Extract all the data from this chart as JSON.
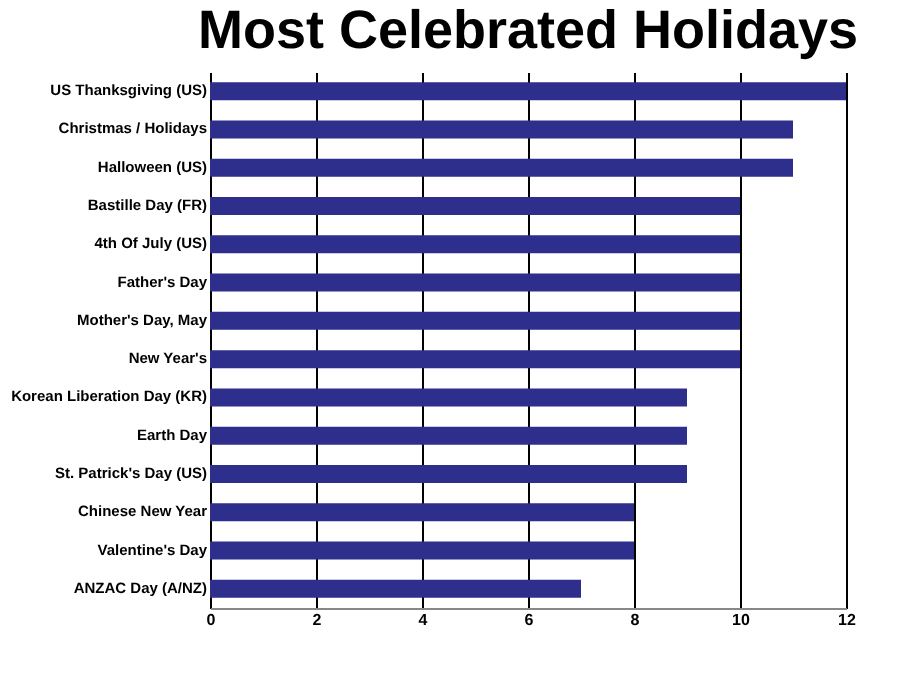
{
  "chart_data": {
    "type": "bar",
    "title": "Most Celebrated Holidays",
    "orientation": "horizontal",
    "categories": [
      "US Thanksgiving (US)",
      "Christmas / Holidays",
      "Halloween (US)",
      "Bastille Day (FR)",
      "4th Of July (US)",
      "Father's Day",
      "Mother's Day, May",
      "New Year's",
      "Korean Liberation Day (KR)",
      "Earth Day",
      "St. Patrick's Day (US)",
      "Chinese New Year",
      "Valentine's Day",
      "ANZAC Day (A/NZ)"
    ],
    "values": [
      12,
      11,
      11,
      10,
      10,
      10,
      10,
      10,
      9,
      9,
      9,
      8,
      8,
      7
    ],
    "color": "#2e2e8c",
    "xlim": [
      0,
      12
    ],
    "xticks": [
      0,
      2,
      4,
      6,
      8,
      10,
      12
    ],
    "grid": "x"
  }
}
